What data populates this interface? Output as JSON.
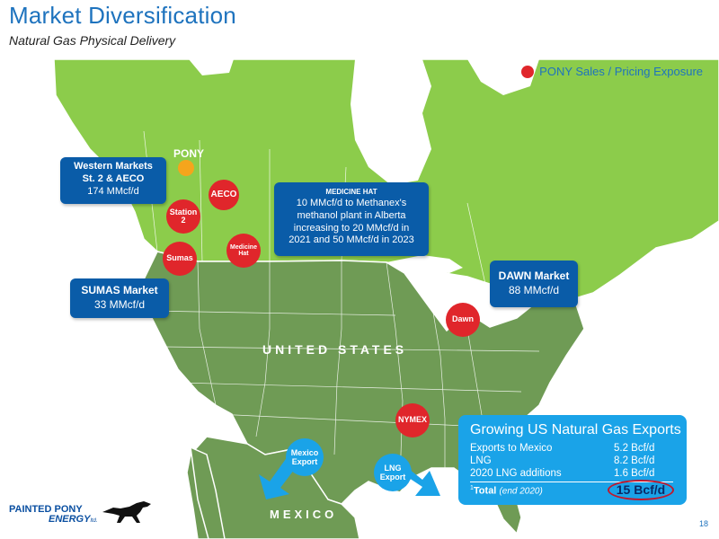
{
  "header": {
    "title": "Market Diversification",
    "subtitle": "Natural Gas Physical Delivery"
  },
  "legend": {
    "label": "PONY Sales / Pricing Exposure"
  },
  "pony_label": "PONY",
  "markers": {
    "aeco": "AECO",
    "station2_line1": "Station",
    "station2_line2": "2",
    "sumas": "Sumas",
    "medicine_hat_line1": "Medicine",
    "medicine_hat_line2": "Hat",
    "dawn": "Dawn",
    "nymex": "NYMEX"
  },
  "callouts": {
    "western": {
      "line1": "Western Markets",
      "line2": "St. 2 & AECO",
      "value": "174 MMcf/d"
    },
    "sumas": {
      "line1": "SUMAS Market",
      "value": "33 MMcf/d"
    },
    "medicine_hat": {
      "heading": "MEDICINE HAT",
      "line1": "10 MMcf/d to Methanex's",
      "line2": "methanol plant in Alberta",
      "line3": "increasing to 20 MMcf/d in",
      "line4": "2021 and 50 MMcf/d in 2023"
    },
    "dawn": {
      "line1": "DAWN Market",
      "value": "88 MMcf/d"
    }
  },
  "countries": {
    "us": "UNITED STATES",
    "mexico": "MEXICO"
  },
  "exports_bubbles": {
    "mexico_line1": "Mexico",
    "mexico_line2": "Export",
    "lng_line1": "LNG",
    "lng_line2": "Export"
  },
  "exports_box": {
    "title": "Growing US Natural Gas Exports",
    "rows": [
      {
        "label": "Exports to Mexico",
        "value": "5.2 Bcf/d"
      },
      {
        "label": "LNG",
        "value": "8.2 Bcf/d"
      },
      {
        "label": "2020 LNG additions",
        "value": "1.6 Bcf/d"
      }
    ],
    "total_sup": "1",
    "total_label": "Total",
    "total_note": "(end 2020)",
    "total_value": "15 Bcf/d"
  },
  "footer": {
    "logo_line1": "PAINTED PONY",
    "logo_line2": "ENERGY",
    "logo_suffix": "ltd.",
    "page": "18"
  },
  "colors": {
    "title_blue": "#1e73be",
    "callout_blue": "#0a5ca8",
    "marker_red": "#e0262b",
    "export_blue": "#1aa3e8",
    "canada_green": "#8ccc4b",
    "us_green": "#6f9b55",
    "water": "#ffffff"
  }
}
